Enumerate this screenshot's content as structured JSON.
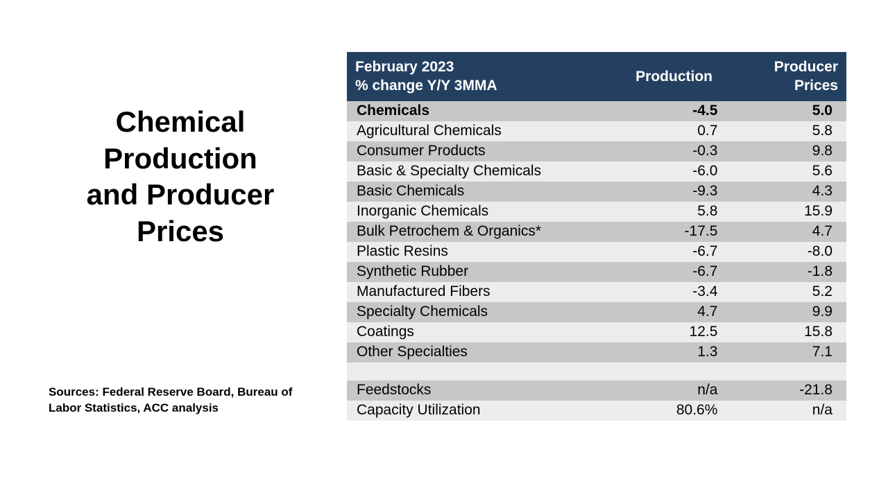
{
  "title_lines": [
    "Chemical",
    "Production",
    "and Producer",
    "Prices"
  ],
  "sources_text": "Sources: Federal Reserve Board, Bureau of Labor Statistics, ACC analysis",
  "table": {
    "header": {
      "left_line1": "February 2023",
      "left_line2": "% change Y/Y 3MMA",
      "production": "Production",
      "prices_line1": "Producer",
      "prices_line2": "Prices"
    },
    "header_bg": "#244061",
    "header_text_color": "#ffffff",
    "row_colors": {
      "light": "#ececec",
      "dark": "#c7c7c7"
    },
    "body_fontsize": 21,
    "header_fontsize": 21,
    "columns": [
      "label",
      "production",
      "producer_prices"
    ],
    "rows": [
      {
        "label": "Chemicals",
        "production": "-4.5",
        "prices": "5.0",
        "shade": "dark",
        "bold": true
      },
      {
        "label": "Agricultural Chemicals",
        "production": "0.7",
        "prices": "5.8",
        "shade": "light",
        "bold": false
      },
      {
        "label": "Consumer Products",
        "production": "-0.3",
        "prices": "9.8",
        "shade": "dark",
        "bold": false
      },
      {
        "label": "Basic & Specialty Chemicals",
        "production": "-6.0",
        "prices": "5.6",
        "shade": "light",
        "bold": false
      },
      {
        "label": "Basic Chemicals",
        "production": "-9.3",
        "prices": "4.3",
        "shade": "dark",
        "bold": false
      },
      {
        "label": "Inorganic Chemicals",
        "production": "5.8",
        "prices": "15.9",
        "shade": "light",
        "bold": false
      },
      {
        "label": "Bulk Petrochem & Organics*",
        "production": "-17.5",
        "prices": "4.7",
        "shade": "dark",
        "bold": false
      },
      {
        "label": "Plastic Resins",
        "production": "-6.7",
        "prices": "-8.0",
        "shade": "light",
        "bold": false
      },
      {
        "label": "Synthetic Rubber",
        "production": "-6.7",
        "prices": "-1.8",
        "shade": "dark",
        "bold": false
      },
      {
        "label": "Manufactured Fibers",
        "production": "-3.4",
        "prices": "5.2",
        "shade": "light",
        "bold": false
      },
      {
        "label": "Specialty Chemicals",
        "production": "4.7",
        "prices": "9.9",
        "shade": "dark",
        "bold": false
      },
      {
        "label": "Coatings",
        "production": "12.5",
        "prices": "15.8",
        "shade": "light",
        "bold": false
      },
      {
        "label": "Other Specialties",
        "production": "1.3",
        "prices": "7.1",
        "shade": "dark",
        "bold": false
      }
    ],
    "spacer_shade": "light",
    "footer_rows": [
      {
        "label": "Feedstocks",
        "production": "n/a",
        "prices": "-21.8",
        "shade": "dark",
        "bold": false
      },
      {
        "label": "Capacity Utilization",
        "production": "80.6%",
        "prices": "n/a",
        "shade": "light",
        "bold": false
      }
    ]
  }
}
